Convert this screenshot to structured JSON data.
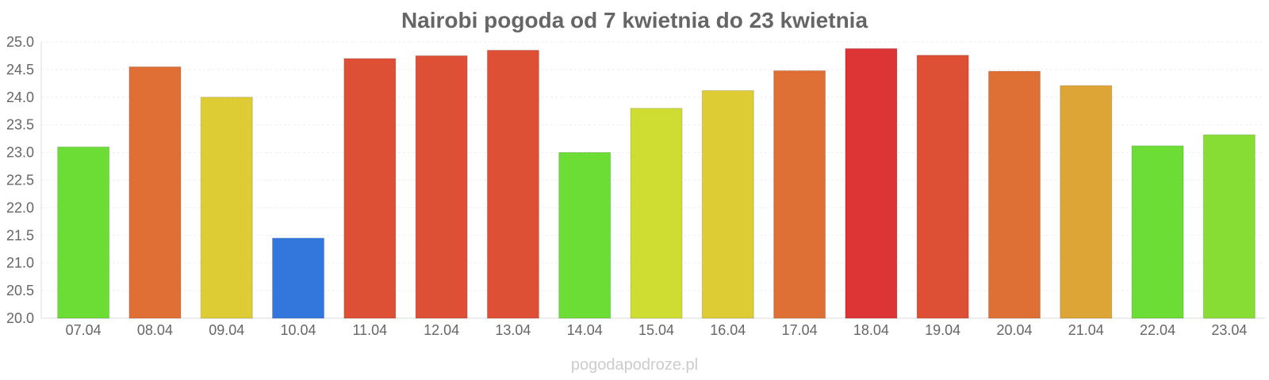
{
  "chart_data": {
    "type": "bar",
    "title": "Nairobi pogoda od 7 kwietnia do 23 kwietnia",
    "xlabel": "",
    "ylabel": "",
    "ylim": [
      20.0,
      25.0
    ],
    "yticks": [
      "20.0",
      "20.5",
      "21.0",
      "21.5",
      "22.0",
      "22.5",
      "23.0",
      "23.5",
      "24.0",
      "24.5",
      "25.0"
    ],
    "grid": true,
    "categories": [
      "07.04",
      "08.04",
      "09.04",
      "10.04",
      "11.04",
      "12.04",
      "13.04",
      "14.04",
      "15.04",
      "16.04",
      "17.04",
      "18.04",
      "19.04",
      "20.04",
      "21.04",
      "22.04",
      "23.04"
    ],
    "values": [
      23.1,
      24.55,
      24.0,
      21.45,
      24.7,
      24.75,
      24.85,
      23.0,
      23.8,
      24.12,
      24.48,
      24.88,
      24.76,
      24.47,
      24.21,
      23.12,
      23.32
    ],
    "colors": [
      "#6bdd34",
      "#df6f35",
      "#ddcc33",
      "#3377dd",
      "#dd5035",
      "#dd5035",
      "#dd5035",
      "#6bdd34",
      "#cfdd33",
      "#ddcc33",
      "#df7035",
      "#dd3535",
      "#dd5035",
      "#df7035",
      "#dda535",
      "#6bdd34",
      "#88dd34"
    ]
  },
  "watermark": "pogodapodroze.pl"
}
